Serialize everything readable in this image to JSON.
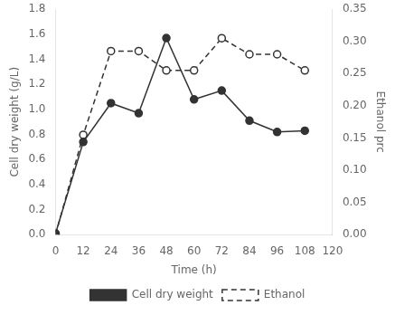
{
  "chart_data": {
    "type": "line",
    "x": [
      0,
      12,
      24,
      36,
      48,
      60,
      72,
      84,
      96,
      108
    ],
    "xlabel": "Time (h)",
    "ylabel": "Cell dry weight (g/L)",
    "y2label": "Ethanol prc",
    "series": [
      {
        "name": "Cell dry weight",
        "color": "#333333",
        "line_style": "solid",
        "marker": "circle",
        "values": [
          0.01,
          0.74,
          1.05,
          0.97,
          1.57,
          1.08,
          1.15,
          0.91,
          0.82,
          0.83
        ]
      },
      {
        "name": "Ethanol",
        "color": "#333333",
        "line_style": "dashed",
        "marker": "open_circle",
        "axis": "y2",
        "values": [
          0.0,
          0.155,
          0.285,
          0.285,
          0.255,
          0.255,
          0.305,
          0.28,
          0.28,
          0.255
        ]
      }
    ],
    "xlim": [
      0,
      120
    ],
    "xticks": [
      0,
      12,
      24,
      36,
      48,
      60,
      72,
      84,
      96,
      108,
      120
    ],
    "ylim": [
      0,
      1.8
    ],
    "yticks": [
      {
        "value": 0.0,
        "label": "0.0"
      },
      0.2,
      0.4,
      0.6,
      0.8,
      {
        "value": 1.0,
        "label": "1.0"
      },
      1.2,
      1.4,
      1.6,
      1.8
    ],
    "y2lim": [
      0,
      0.35
    ],
    "y2ticks": [
      {
        "value": 0.0,
        "label": "0.00"
      },
      0.05,
      {
        "value": 0.1,
        "label": "0.10"
      },
      0.15,
      {
        "value": 0.2,
        "label": "0.20"
      },
      0.25,
      {
        "value": 0.3,
        "label": "0.30"
      },
      0.35
    ],
    "grid": false,
    "legend": "bottom"
  }
}
